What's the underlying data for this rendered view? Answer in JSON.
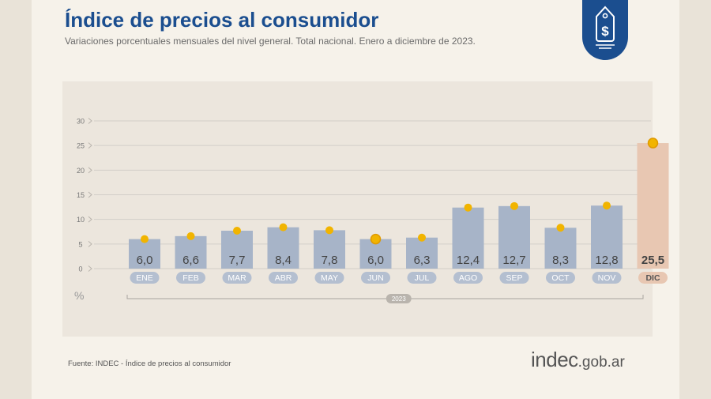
{
  "title": "Índice de precios al consumidor",
  "subtitle": "Variaciones porcentuales mensuales del nivel general. Total nacional. Enero a diciembre de 2023.",
  "source": "Fuente: INDEC - Índice de precios al consumidor",
  "brand": {
    "name": "indec",
    "suffix": ".gob.ar"
  },
  "badge": {
    "icon": "price-tag-dollar-icon",
    "color": "#1b4e8f"
  },
  "colors": {
    "bar": "#a7b4c8",
    "bar_highlight": "#e8c7b2",
    "marker": "#f1b400",
    "label_pill": "#b4bfd0",
    "label_pill_highlight": "#e8c7b2",
    "grid": "#d2cec8",
    "axis_text": "#777777",
    "value_text": "#444444"
  },
  "chart_data": {
    "type": "bar",
    "categories": [
      "ENE",
      "FEB",
      "MAR",
      "ABR",
      "MAY",
      "JUN",
      "JUL",
      "AGO",
      "SEP",
      "OCT",
      "NOV",
      "DIC"
    ],
    "values": [
      6.0,
      6.6,
      7.7,
      8.4,
      7.8,
      6.0,
      6.3,
      12.4,
      12.7,
      8.3,
      12.8,
      25.5
    ],
    "value_labels": [
      "6,0",
      "6,6",
      "7,7",
      "8,4",
      "7,8",
      "6,0",
      "6,3",
      "12,4",
      "12,7",
      "8,3",
      "12,8",
      "25,5"
    ],
    "highlight": "DIC",
    "yticks": [
      0,
      5,
      10,
      15,
      20,
      25,
      30
    ],
    "ylim": [
      0,
      30
    ],
    "ylabel": "%",
    "period_label": "2023",
    "grid": true
  }
}
